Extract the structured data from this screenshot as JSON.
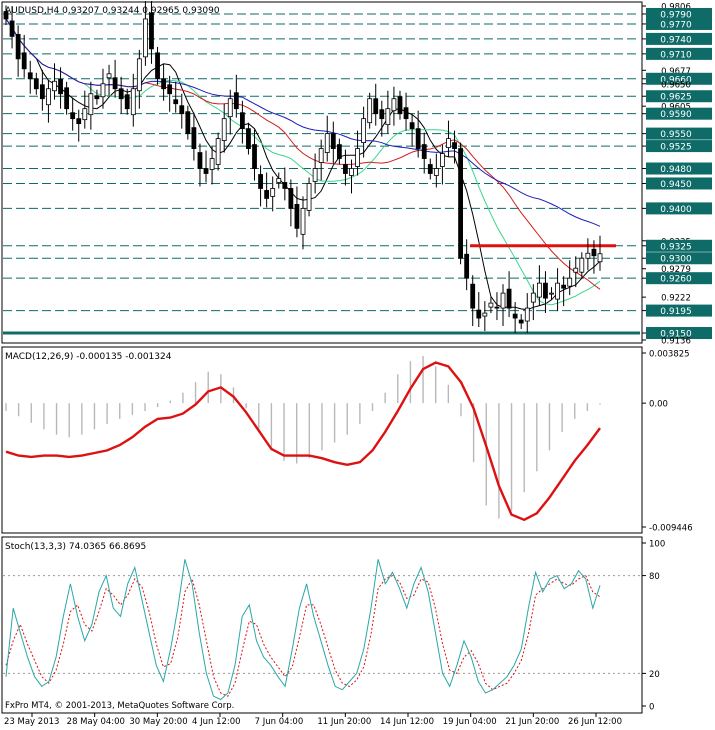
{
  "main_header": "AUDUSD,H4  0.93207 0.93244 0.92965 0.93090",
  "macd_header": "MACD(12,26,9) -0.000135 -0.001324",
  "stoch_header": "Stoch(13,3,3) 74.0365 66.8695",
  "copyright": "FxPro MT4, © 2001-2013, MetaQuotes Software Corp.",
  "colors": {
    "candle": "#000000",
    "level_line": "#0e6b67",
    "level_box": "#0e6b67",
    "sma_black": "#000000",
    "sma_green": "#3dd68c",
    "sma_red": "#d21e1e",
    "sma_blue": "#1f1fb8",
    "resistance": "#e01010",
    "macd_signal": "#dd1111",
    "macd_hist": "#b8b8b8",
    "stoch_main": "#2aa7a7",
    "stoch_signal": "#dd1111"
  },
  "chart_data": [
    {
      "type": "candlestick",
      "symbol": "AUDUSD",
      "timeframe": "H4",
      "ohlc_last": {
        "open": 0.93207,
        "high": 0.93244,
        "low": 0.92965,
        "close": 0.9309
      },
      "ylim": [
        0.9136,
        0.9806
      ],
      "y_tick_labels": [
        "0.9806",
        "0.9790",
        "0.9770",
        "0.9740",
        "0.9710",
        "0.9677",
        "0.9660",
        "0.9650",
        "0.9625",
        "0.9605",
        "0.9590",
        "0.9550",
        "0.9525",
        "0.9480",
        "0.9450",
        "0.9400",
        "0.9335",
        "0.9325",
        "0.9300",
        "0.9279",
        "0.9260",
        "0.9222",
        "0.9195",
        "0.9150",
        "0.9136"
      ],
      "levels": [
        "0.9790",
        "0.9770",
        "0.9740",
        "0.9710",
        "0.9660",
        "0.9625",
        "0.9590",
        "0.9550",
        "0.9525",
        "0.9480",
        "0.9450",
        "0.9400",
        "0.9325",
        "0.9300",
        "0.9260",
        "0.9195",
        "0.9150"
      ],
      "resistance_level": 0.9325,
      "x_labels": [
        "23 May 2013",
        "28 May 04:00",
        "30 May 20:00",
        "4 Jun 12:00",
        "7 Jun 04:00",
        "11 Jun 20:00",
        "14 Jun 12:00",
        "19 Jun 04:00",
        "21 Jun 20:00",
        "26 Jun 12:00"
      ],
      "close_path": [
        0.978,
        0.9745,
        0.97,
        0.968,
        0.966,
        0.964,
        0.962,
        0.964,
        0.9655,
        0.963,
        0.96,
        0.958,
        0.957,
        0.96,
        0.963,
        0.962,
        0.965,
        0.967,
        0.964,
        0.962,
        0.96,
        0.964,
        0.97,
        0.978,
        0.972,
        0.966,
        0.964,
        0.963,
        0.961,
        0.959,
        0.955,
        0.952,
        0.948,
        0.947,
        0.95,
        0.954,
        0.958,
        0.962,
        0.96,
        0.956,
        0.952,
        0.948,
        0.944,
        0.942,
        0.944,
        0.946,
        0.944,
        0.94,
        0.936,
        0.94,
        0.945,
        0.948,
        0.952,
        0.955,
        0.952,
        0.95,
        0.947,
        0.948,
        0.952,
        0.958,
        0.962,
        0.959,
        0.958,
        0.96,
        0.962,
        0.959,
        0.958,
        0.956,
        0.952,
        0.95,
        0.947,
        0.948,
        0.951,
        0.954,
        0.952,
        0.93,
        0.926,
        0.92,
        0.918,
        0.919,
        0.921,
        0.92,
        0.923,
        0.92,
        0.918,
        0.917,
        0.92,
        0.923,
        0.925,
        0.922,
        0.923,
        0.925,
        0.924,
        0.926,
        0.928,
        0.93,
        0.931,
        0.9305,
        0.9309
      ]
    },
    {
      "type": "line",
      "name": "MACD(12,26,9)",
      "values_last": {
        "main": -0.000135,
        "signal": -0.001324
      },
      "ylim": [
        -0.009446,
        0.003825
      ],
      "y_tick_labels": [
        "0.003825",
        "0.00",
        "-0.009446"
      ],
      "histogram": [
        -0.0006,
        -0.001,
        -0.0015,
        -0.002,
        -0.0024,
        -0.0026,
        -0.0024,
        -0.002,
        -0.0016,
        -0.0012,
        -0.0009,
        -0.0006,
        -0.0003,
        0.0002,
        0.0008,
        0.0016,
        0.0024,
        0.0022,
        0.0012,
        -0.0004,
        -0.0022,
        -0.0036,
        -0.0044,
        -0.0046,
        -0.0042,
        -0.0036,
        -0.003,
        -0.0024,
        -0.0016,
        -0.0006,
        0.0008,
        0.0022,
        0.0032,
        0.0036,
        0.0028,
        0.0014,
        -0.001,
        -0.0045,
        -0.0078,
        -0.0088,
        -0.0082,
        -0.0068,
        -0.0052,
        -0.0036,
        -0.0022,
        -0.0012,
        -0.0006,
        -0.0001
      ],
      "signal": [
        -0.0037,
        -0.004,
        -0.0041,
        -0.004,
        -0.004,
        -0.0041,
        -0.004,
        -0.0038,
        -0.0036,
        -0.0032,
        -0.0026,
        -0.0018,
        -0.0012,
        -0.0011,
        -0.0008,
        -0.0001,
        0.0009,
        0.0012,
        0.0005,
        -0.0007,
        -0.0021,
        -0.0035,
        -0.004,
        -0.004,
        -0.004,
        -0.0042,
        -0.0045,
        -0.0047,
        -0.0045,
        -0.0036,
        -0.0022,
        -0.0006,
        0.0011,
        0.0026,
        0.0031,
        0.0028,
        0.0016,
        -0.0004,
        -0.0033,
        -0.0063,
        -0.0085,
        -0.0089,
        -0.0084,
        -0.0072,
        -0.0058,
        -0.0044,
        -0.0032,
        -0.0019
      ]
    },
    {
      "type": "line",
      "name": "Stoch(13,3,3)",
      "values_last": {
        "main": 74.0365,
        "signal": 66.8695
      },
      "ylim": [
        0,
        100
      ],
      "y_tick_labels": [
        "100",
        "80",
        "20",
        "0"
      ],
      "main": [
        18,
        60,
        45,
        30,
        18,
        12,
        15,
        30,
        55,
        75,
        55,
        40,
        50,
        70,
        80,
        60,
        55,
        75,
        85,
        65,
        45,
        25,
        15,
        35,
        60,
        90,
        75,
        45,
        20,
        6,
        4,
        8,
        25,
        55,
        62,
        40,
        30,
        25,
        18,
        12,
        35,
        60,
        75,
        55,
        40,
        25,
        12,
        10,
        15,
        20,
        35,
        60,
        90,
        75,
        82,
        72,
        60,
        75,
        85,
        70,
        45,
        20,
        12,
        25,
        40,
        30,
        15,
        8,
        10,
        14,
        18,
        25,
        35,
        60,
        82,
        70,
        78,
        80,
        72,
        75,
        83,
        78,
        60,
        74
      ],
      "signal": [
        25,
        40,
        50,
        38,
        28,
        18,
        14,
        22,
        38,
        58,
        62,
        50,
        46,
        58,
        72,
        68,
        62,
        68,
        78,
        73,
        58,
        38,
        24,
        26,
        42,
        70,
        78,
        62,
        40,
        18,
        8,
        6,
        14,
        34,
        52,
        50,
        38,
        30,
        24,
        18,
        24,
        42,
        62,
        62,
        50,
        36,
        22,
        14,
        12,
        16,
        24,
        44,
        72,
        78,
        80,
        76,
        66,
        68,
        78,
        76,
        60,
        38,
        22,
        20,
        30,
        34,
        26,
        14,
        10,
        12,
        14,
        20,
        28,
        44,
        68,
        72,
        75,
        78,
        75,
        74,
        78,
        80,
        70,
        67
      ]
    }
  ]
}
